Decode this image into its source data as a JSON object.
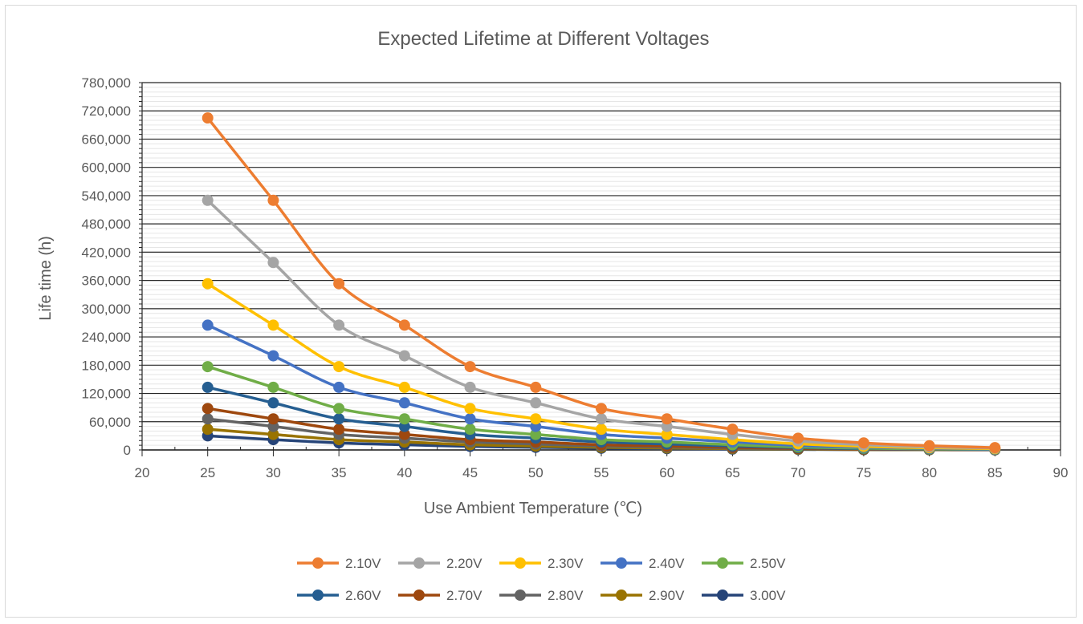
{
  "chart_data": {
    "type": "line",
    "title": "Expected Lifetime at Different Voltages",
    "xlabel": "Use Ambient Temperature (℃)",
    "ylabel": "Life time (h)",
    "xlim": [
      20,
      90
    ],
    "ylim": [
      0,
      780000
    ],
    "x_ticks": [
      "20",
      "25",
      "30",
      "35",
      "40",
      "45",
      "50",
      "55",
      "60",
      "65",
      "70",
      "75",
      "80",
      "85",
      "90"
    ],
    "y_ticks": [
      "0",
      "60,000",
      "120,000",
      "180,000",
      "240,000",
      "300,000",
      "360,000",
      "420,000",
      "480,000",
      "540,000",
      "600,000",
      "660,000",
      "720,000",
      "780,000"
    ],
    "x": [
      25,
      30,
      35,
      40,
      45,
      50,
      55,
      60,
      65,
      70,
      75,
      80,
      85
    ],
    "grid": true,
    "legend_position": "bottom",
    "series": [
      {
        "name": "2.10V",
        "color": "#ED7D31",
        "values": [
          705000,
          530000,
          353000,
          265000,
          177000,
          133000,
          88000,
          66000,
          44000,
          25000,
          15000,
          9000,
          5000
        ]
      },
      {
        "name": "2.20V",
        "color": "#A5A5A5",
        "values": [
          530000,
          398000,
          265000,
          200000,
          133000,
          100000,
          66000,
          50000,
          33000,
          19000,
          11000,
          6500,
          4000
        ]
      },
      {
        "name": "2.30V",
        "color": "#FFC000",
        "values": [
          353000,
          265000,
          177000,
          133000,
          88000,
          66000,
          44000,
          33000,
          22000,
          13000,
          7500,
          4500,
          2700
        ]
      },
      {
        "name": "2.40V",
        "color": "#4472C4",
        "values": [
          265000,
          200000,
          133000,
          100000,
          66000,
          50000,
          33000,
          25000,
          17000,
          9500,
          5700,
          3400,
          2000
        ]
      },
      {
        "name": "2.50V",
        "color": "#70AD47",
        "values": [
          177000,
          133000,
          88000,
          66000,
          44000,
          33000,
          22000,
          17000,
          11000,
          6300,
          3800,
          2300,
          1300
        ]
      },
      {
        "name": "2.60V",
        "color": "#255E91",
        "values": [
          133000,
          100000,
          66000,
          50000,
          33000,
          25000,
          17000,
          12500,
          8300,
          4800,
          2800,
          1700,
          1000
        ]
      },
      {
        "name": "2.70V",
        "color": "#9E480E",
        "values": [
          88000,
          66000,
          44000,
          33000,
          22000,
          17000,
          11000,
          8300,
          5500,
          3200,
          1900,
          1100,
          700
        ]
      },
      {
        "name": "2.80V",
        "color": "#636363",
        "values": [
          66000,
          50000,
          33000,
          25000,
          17000,
          12500,
          8300,
          6200,
          4100,
          2400,
          1400,
          850,
          500
        ]
      },
      {
        "name": "2.90V",
        "color": "#997300",
        "values": [
          44000,
          33000,
          22000,
          17000,
          11000,
          8300,
          5500,
          4100,
          2800,
          1600,
          950,
          570,
          340
        ]
      },
      {
        "name": "3.00V",
        "color": "#264478",
        "values": [
          30000,
          22000,
          15000,
          11000,
          7500,
          5600,
          3700,
          2800,
          1900,
          1100,
          640,
          380,
          230
        ]
      }
    ]
  }
}
